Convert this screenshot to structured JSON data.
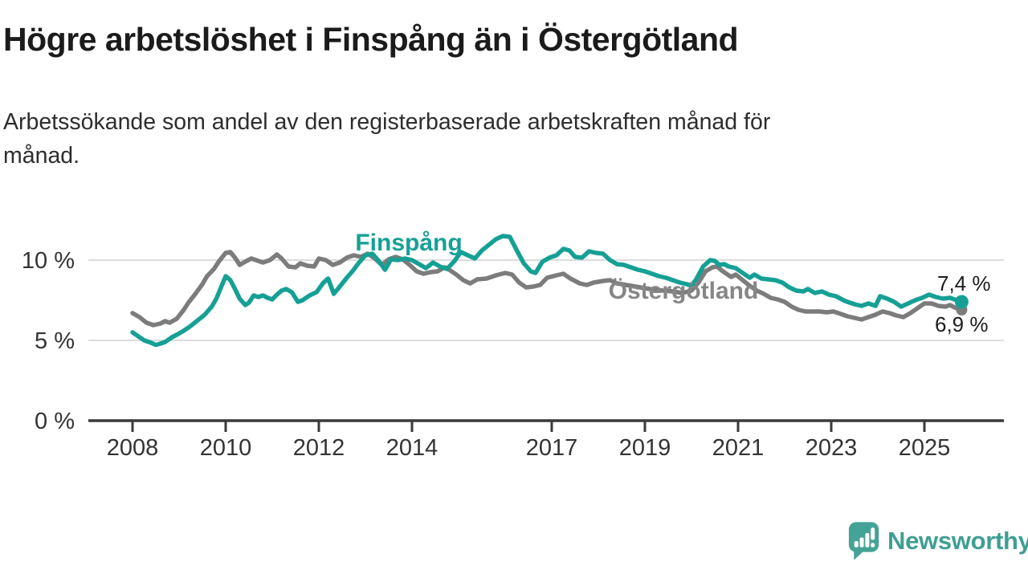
{
  "title": "Högre arbetslöshet i Finspång än i Östergötland",
  "subtitle": "Arbetssökande som andel av den registerbaserade arbetskraften månad för månad.",
  "branding": {
    "logo_text": "Newsworthy",
    "logo_color": "#45a296",
    "logo_icon": "speech-bubble-bar-chart-icon"
  },
  "colors": {
    "finspang_line": "#16a095",
    "ostergotland_line": "#7c7c7c",
    "gridline": "#dcdcdc",
    "axis": "#3a3a3a",
    "text": "#1b1b1b"
  },
  "chart_data": {
    "type": "line",
    "title": "Högre arbetslöshet i Finspång än i Östergötland",
    "xlabel": "",
    "ylabel": "",
    "ylim": [
      0,
      12
    ],
    "xlim": [
      2007.05,
      2026.7
    ],
    "grid": "horizontal",
    "legend": "inline-labels",
    "yticks": [
      {
        "label": "0 %",
        "value": 0
      },
      {
        "label": "5 %",
        "value": 5
      },
      {
        "label": "10 %",
        "value": 10
      }
    ],
    "xticks": [
      {
        "label": "2008",
        "value": 2008
      },
      {
        "label": "2010",
        "value": 2010
      },
      {
        "label": "2012",
        "value": 2012
      },
      {
        "label": "2014",
        "value": 2014
      },
      {
        "label": "2017",
        "value": 2017
      },
      {
        "label": "2019",
        "value": 2019
      },
      {
        "label": "2021",
        "value": 2021
      },
      {
        "label": "2023",
        "value": 2023
      },
      {
        "label": "2025",
        "value": 2025
      }
    ],
    "series": [
      {
        "name": "Finspång",
        "color": "#16a095",
        "label_color": "#16a095",
        "end_label": "7,4 %",
        "end_value": 7.4,
        "points": [
          [
            2008.0,
            5.5
          ],
          [
            2008.1,
            5.3
          ],
          [
            2008.25,
            5.0
          ],
          [
            2008.4,
            4.85
          ],
          [
            2008.5,
            4.72
          ],
          [
            2008.6,
            4.8
          ],
          [
            2008.7,
            4.9
          ],
          [
            2008.85,
            5.2
          ],
          [
            2008.95,
            5.35
          ],
          [
            2009.1,
            5.6
          ],
          [
            2009.25,
            5.9
          ],
          [
            2009.4,
            6.25
          ],
          [
            2009.55,
            6.6
          ],
          [
            2009.7,
            7.1
          ],
          [
            2009.8,
            7.6
          ],
          [
            2009.9,
            8.3
          ],
          [
            2010.0,
            9.0
          ],
          [
            2010.1,
            8.75
          ],
          [
            2010.2,
            8.2
          ],
          [
            2010.3,
            7.6
          ],
          [
            2010.42,
            7.2
          ],
          [
            2010.5,
            7.35
          ],
          [
            2010.6,
            7.8
          ],
          [
            2010.7,
            7.7
          ],
          [
            2010.8,
            7.8
          ],
          [
            2010.9,
            7.65
          ],
          [
            2011.0,
            7.55
          ],
          [
            2011.1,
            7.85
          ],
          [
            2011.2,
            8.1
          ],
          [
            2011.3,
            8.2
          ],
          [
            2011.42,
            8.0
          ],
          [
            2011.55,
            7.4
          ],
          [
            2011.65,
            7.5
          ],
          [
            2011.8,
            7.8
          ],
          [
            2011.95,
            8.0
          ],
          [
            2012.1,
            8.6
          ],
          [
            2012.2,
            8.85
          ],
          [
            2012.32,
            7.9
          ],
          [
            2012.45,
            8.35
          ],
          [
            2012.6,
            8.9
          ],
          [
            2012.72,
            9.3
          ],
          [
            2012.85,
            9.8
          ],
          [
            2013.0,
            10.3
          ],
          [
            2013.15,
            10.4
          ],
          [
            2013.3,
            9.9
          ],
          [
            2013.42,
            9.4
          ],
          [
            2013.55,
            10.05
          ],
          [
            2013.7,
            10.0
          ],
          [
            2013.85,
            10.1
          ],
          [
            2014.0,
            10.0
          ],
          [
            2014.15,
            9.75
          ],
          [
            2014.3,
            9.5
          ],
          [
            2014.45,
            9.85
          ],
          [
            2014.6,
            9.6
          ],
          [
            2014.75,
            9.45
          ],
          [
            2014.9,
            9.9
          ],
          [
            2015.05,
            10.5
          ],
          [
            2015.2,
            10.3
          ],
          [
            2015.35,
            10.1
          ],
          [
            2015.5,
            10.6
          ],
          [
            2015.65,
            10.95
          ],
          [
            2015.8,
            11.3
          ],
          [
            2015.95,
            11.5
          ],
          [
            2016.1,
            11.45
          ],
          [
            2016.25,
            10.6
          ],
          [
            2016.4,
            9.8
          ],
          [
            2016.55,
            9.3
          ],
          [
            2016.65,
            9.2
          ],
          [
            2016.8,
            9.9
          ],
          [
            2016.95,
            10.15
          ],
          [
            2017.1,
            10.3
          ],
          [
            2017.25,
            10.7
          ],
          [
            2017.38,
            10.6
          ],
          [
            2017.5,
            10.2
          ],
          [
            2017.65,
            10.15
          ],
          [
            2017.8,
            10.55
          ],
          [
            2017.95,
            10.45
          ],
          [
            2018.1,
            10.4
          ],
          [
            2018.25,
            10.0
          ],
          [
            2018.4,
            9.75
          ],
          [
            2018.55,
            9.7
          ],
          [
            2018.7,
            9.55
          ],
          [
            2018.85,
            9.4
          ],
          [
            2019.0,
            9.3
          ],
          [
            2019.15,
            9.15
          ],
          [
            2019.3,
            9.0
          ],
          [
            2019.45,
            8.9
          ],
          [
            2019.6,
            8.75
          ],
          [
            2019.75,
            8.6
          ],
          [
            2019.9,
            8.5
          ],
          [
            2020.0,
            8.4
          ],
          [
            2020.1,
            8.8
          ],
          [
            2020.25,
            9.6
          ],
          [
            2020.4,
            10.0
          ],
          [
            2020.5,
            9.95
          ],
          [
            2020.6,
            9.7
          ],
          [
            2020.7,
            9.75
          ],
          [
            2020.8,
            9.6
          ],
          [
            2020.95,
            9.5
          ],
          [
            2021.1,
            9.2
          ],
          [
            2021.25,
            8.9
          ],
          [
            2021.35,
            9.1
          ],
          [
            2021.5,
            8.85
          ],
          [
            2021.65,
            8.8
          ],
          [
            2021.8,
            8.75
          ],
          [
            2021.95,
            8.6
          ],
          [
            2022.1,
            8.3
          ],
          [
            2022.25,
            8.1
          ],
          [
            2022.4,
            8.05
          ],
          [
            2022.5,
            8.2
          ],
          [
            2022.65,
            7.95
          ],
          [
            2022.8,
            8.05
          ],
          [
            2022.95,
            7.85
          ],
          [
            2023.1,
            7.75
          ],
          [
            2023.3,
            7.45
          ],
          [
            2023.5,
            7.25
          ],
          [
            2023.65,
            7.15
          ],
          [
            2023.8,
            7.3
          ],
          [
            2023.95,
            7.15
          ],
          [
            2024.05,
            7.75
          ],
          [
            2024.2,
            7.6
          ],
          [
            2024.35,
            7.4
          ],
          [
            2024.5,
            7.1
          ],
          [
            2024.65,
            7.3
          ],
          [
            2024.8,
            7.5
          ],
          [
            2024.95,
            7.65
          ],
          [
            2025.1,
            7.85
          ],
          [
            2025.25,
            7.7
          ],
          [
            2025.4,
            7.6
          ],
          [
            2025.55,
            7.65
          ],
          [
            2025.7,
            7.5
          ],
          [
            2025.8,
            7.4
          ]
        ]
      },
      {
        "name": "Östergötland",
        "color": "#7c7c7c",
        "label_color": "#868686",
        "end_label": "6,9 %",
        "end_value": 6.9,
        "points": [
          [
            2008.0,
            6.7
          ],
          [
            2008.15,
            6.45
          ],
          [
            2008.3,
            6.1
          ],
          [
            2008.45,
            5.95
          ],
          [
            2008.6,
            6.05
          ],
          [
            2008.7,
            6.2
          ],
          [
            2008.8,
            6.1
          ],
          [
            2008.95,
            6.35
          ],
          [
            2009.1,
            6.9
          ],
          [
            2009.2,
            7.35
          ],
          [
            2009.35,
            7.9
          ],
          [
            2009.5,
            8.5
          ],
          [
            2009.6,
            9.0
          ],
          [
            2009.75,
            9.45
          ],
          [
            2009.85,
            9.9
          ],
          [
            2010.0,
            10.45
          ],
          [
            2010.1,
            10.5
          ],
          [
            2010.2,
            10.15
          ],
          [
            2010.3,
            9.7
          ],
          [
            2010.45,
            9.95
          ],
          [
            2010.55,
            10.1
          ],
          [
            2010.65,
            10.0
          ],
          [
            2010.8,
            9.85
          ],
          [
            2010.95,
            10.0
          ],
          [
            2011.1,
            10.35
          ],
          [
            2011.2,
            10.1
          ],
          [
            2011.35,
            9.6
          ],
          [
            2011.5,
            9.55
          ],
          [
            2011.6,
            9.8
          ],
          [
            2011.75,
            9.65
          ],
          [
            2011.9,
            9.6
          ],
          [
            2012.0,
            10.1
          ],
          [
            2012.15,
            10.0
          ],
          [
            2012.3,
            9.7
          ],
          [
            2012.45,
            9.85
          ],
          [
            2012.6,
            10.15
          ],
          [
            2012.75,
            10.3
          ],
          [
            2012.9,
            10.2
          ],
          [
            2013.05,
            10.4
          ],
          [
            2013.2,
            10.1
          ],
          [
            2013.35,
            9.7
          ],
          [
            2013.5,
            10.05
          ],
          [
            2013.65,
            10.2
          ],
          [
            2013.8,
            10.05
          ],
          [
            2013.95,
            9.7
          ],
          [
            2014.1,
            9.3
          ],
          [
            2014.25,
            9.15
          ],
          [
            2014.4,
            9.25
          ],
          [
            2014.55,
            9.3
          ],
          [
            2014.7,
            9.55
          ],
          [
            2014.8,
            9.4
          ],
          [
            2014.95,
            9.1
          ],
          [
            2015.1,
            8.75
          ],
          [
            2015.25,
            8.55
          ],
          [
            2015.4,
            8.8
          ],
          [
            2015.6,
            8.85
          ],
          [
            2015.8,
            9.05
          ],
          [
            2016.0,
            9.2
          ],
          [
            2016.15,
            9.1
          ],
          [
            2016.3,
            8.6
          ],
          [
            2016.45,
            8.3
          ],
          [
            2016.6,
            8.35
          ],
          [
            2016.75,
            8.45
          ],
          [
            2016.9,
            8.9
          ],
          [
            2017.1,
            9.05
          ],
          [
            2017.25,
            9.15
          ],
          [
            2017.4,
            8.85
          ],
          [
            2017.6,
            8.55
          ],
          [
            2017.75,
            8.45
          ],
          [
            2017.9,
            8.6
          ],
          [
            2018.1,
            8.7
          ],
          [
            2018.25,
            8.75
          ],
          [
            2018.4,
            8.55
          ],
          [
            2018.6,
            8.45
          ],
          [
            2018.8,
            8.35
          ],
          [
            2019.0,
            8.25
          ],
          [
            2019.2,
            8.15
          ],
          [
            2019.4,
            8.1
          ],
          [
            2019.6,
            8.05
          ],
          [
            2019.8,
            7.95
          ],
          [
            2020.0,
            8.1
          ],
          [
            2020.15,
            8.6
          ],
          [
            2020.3,
            9.3
          ],
          [
            2020.45,
            9.55
          ],
          [
            2020.55,
            9.6
          ],
          [
            2020.65,
            9.35
          ],
          [
            2020.75,
            9.15
          ],
          [
            2020.85,
            8.95
          ],
          [
            2020.95,
            9.1
          ],
          [
            2021.1,
            8.75
          ],
          [
            2021.25,
            8.4
          ],
          [
            2021.4,
            8.1
          ],
          [
            2021.55,
            7.9
          ],
          [
            2021.7,
            7.65
          ],
          [
            2021.85,
            7.55
          ],
          [
            2022.0,
            7.4
          ],
          [
            2022.15,
            7.1
          ],
          [
            2022.3,
            6.9
          ],
          [
            2022.45,
            6.8
          ],
          [
            2022.6,
            6.8
          ],
          [
            2022.75,
            6.8
          ],
          [
            2022.9,
            6.75
          ],
          [
            2023.05,
            6.8
          ],
          [
            2023.2,
            6.65
          ],
          [
            2023.35,
            6.5
          ],
          [
            2023.5,
            6.4
          ],
          [
            2023.65,
            6.3
          ],
          [
            2023.8,
            6.45
          ],
          [
            2023.95,
            6.6
          ],
          [
            2024.1,
            6.8
          ],
          [
            2024.25,
            6.7
          ],
          [
            2024.4,
            6.55
          ],
          [
            2024.55,
            6.45
          ],
          [
            2024.7,
            6.7
          ],
          [
            2024.85,
            7.0
          ],
          [
            2025.0,
            7.3
          ],
          [
            2025.15,
            7.3
          ],
          [
            2025.3,
            7.15
          ],
          [
            2025.45,
            7.1
          ],
          [
            2025.55,
            7.2
          ],
          [
            2025.65,
            7.05
          ],
          [
            2025.8,
            6.9
          ]
        ]
      }
    ]
  }
}
